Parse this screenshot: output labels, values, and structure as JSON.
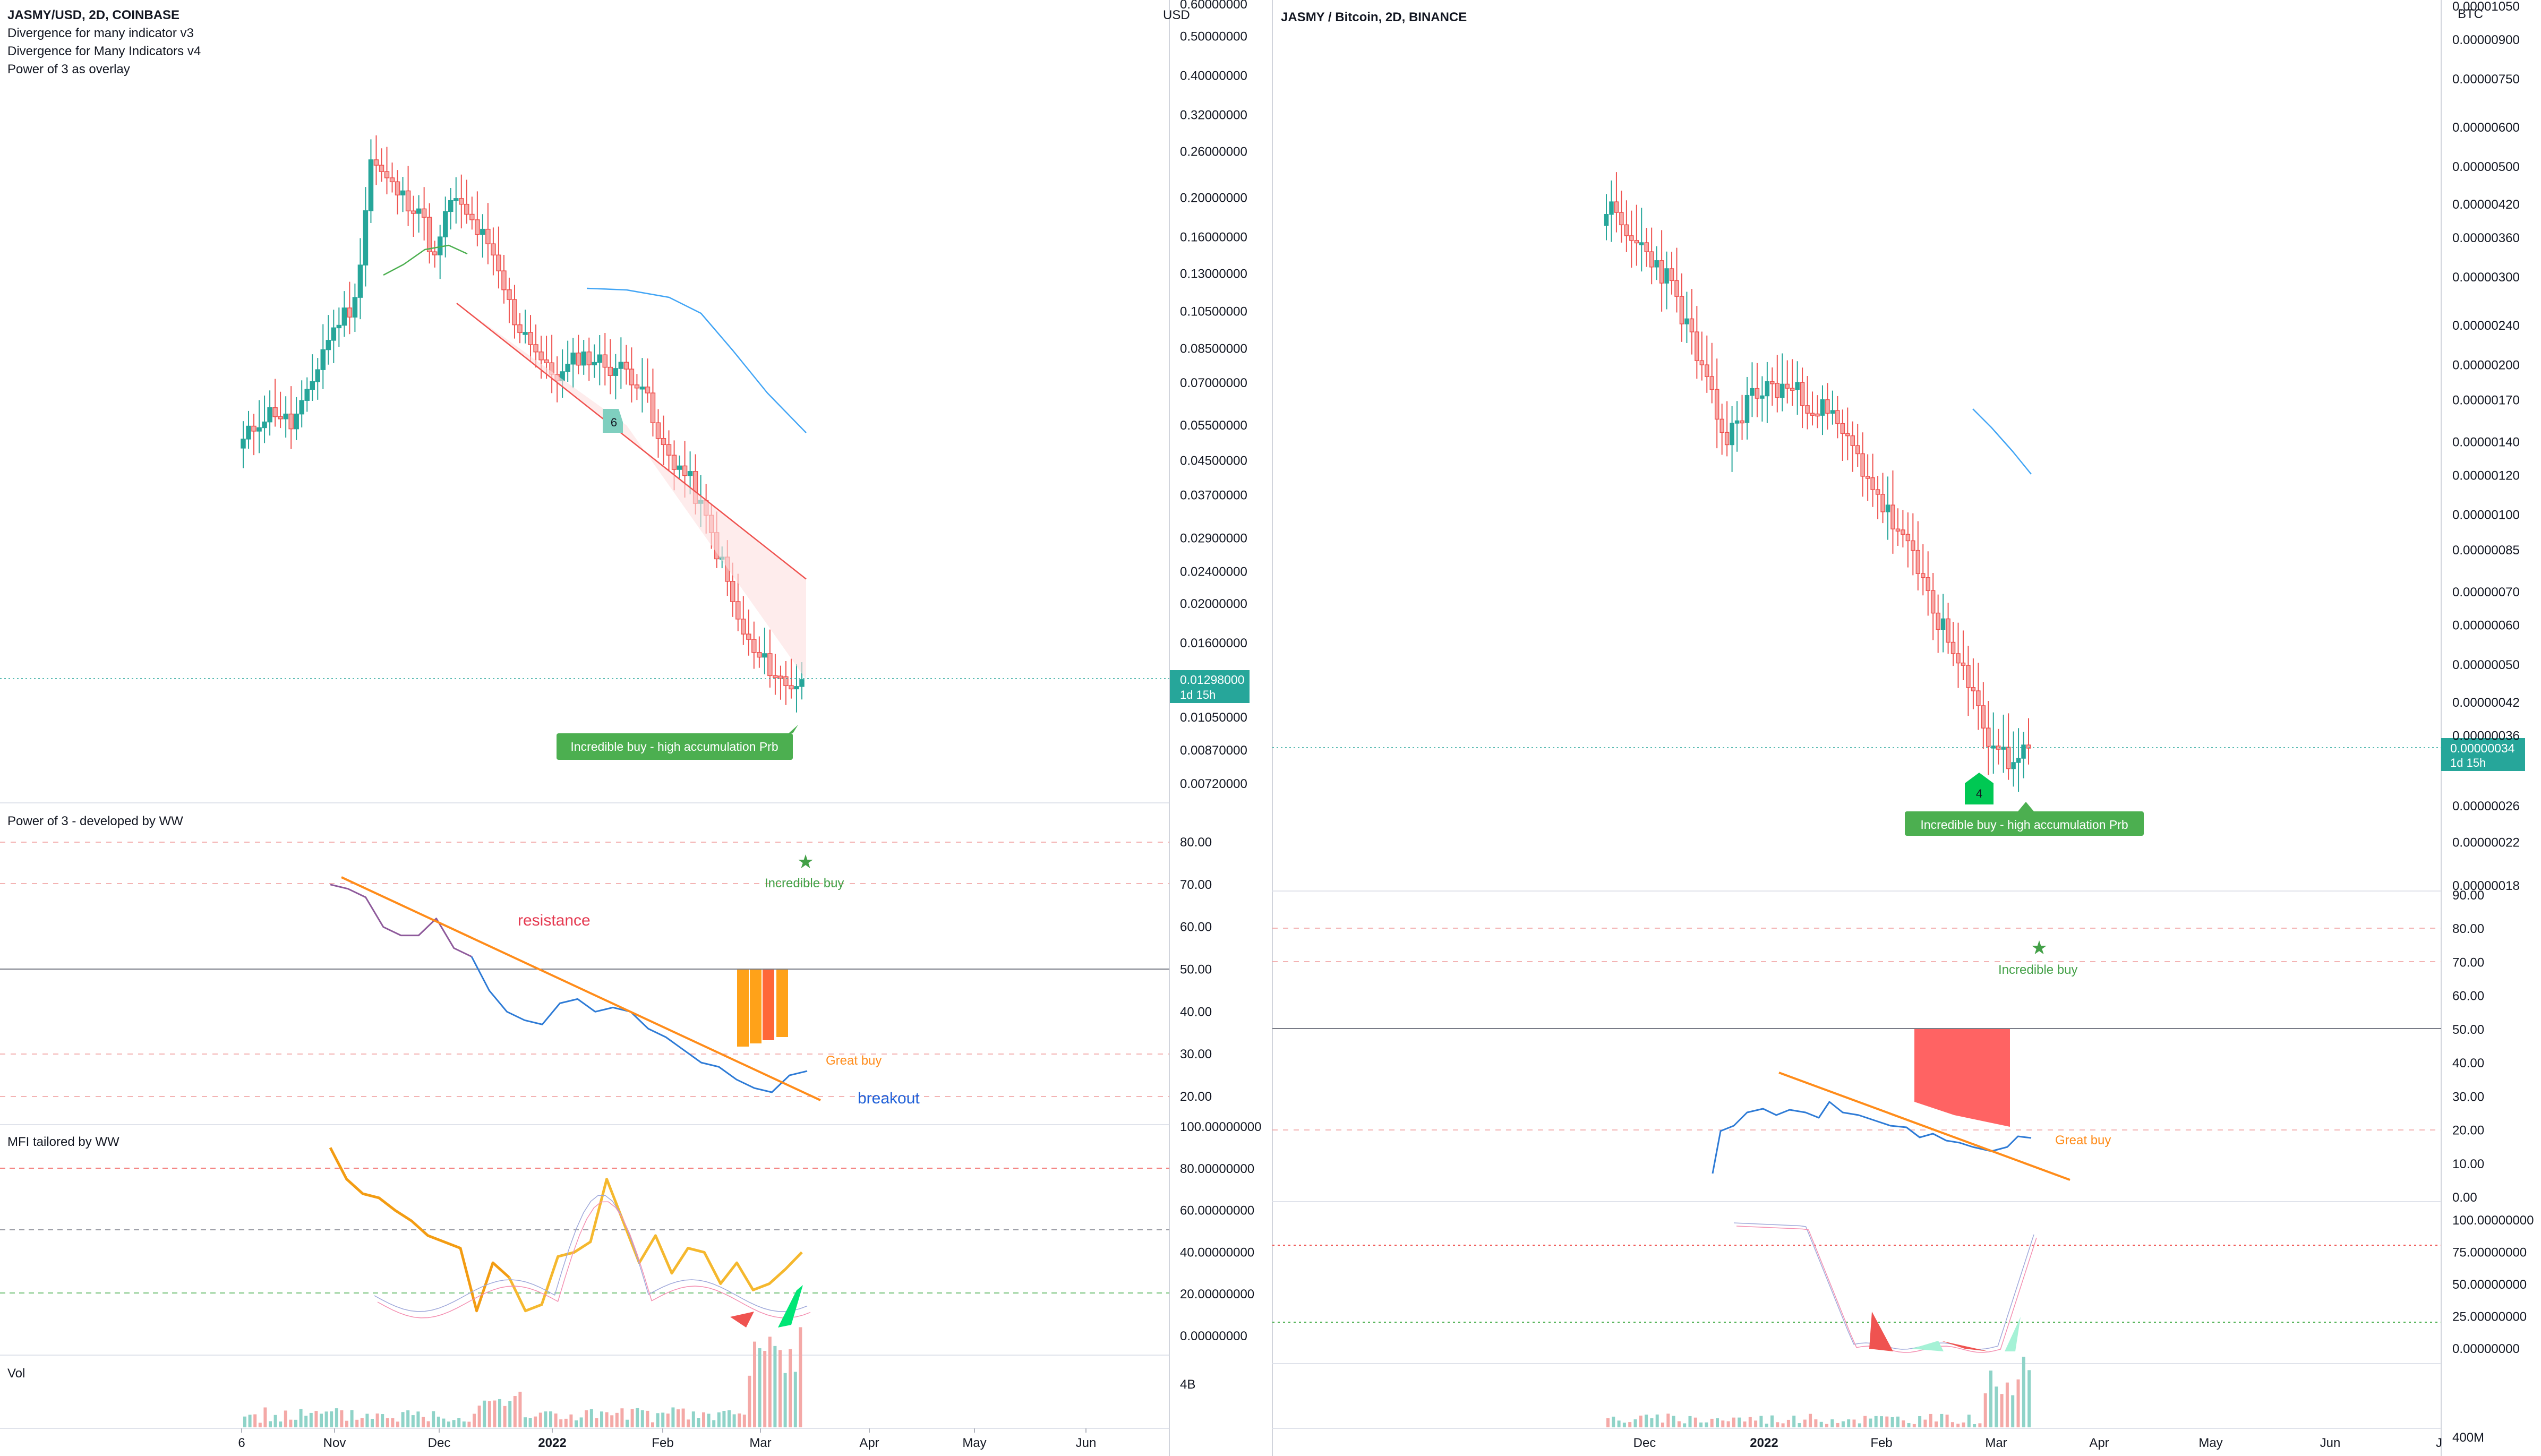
{
  "left_chart": {
    "title": "JASMY/USD, 2D, COINBASE",
    "indicators": [
      "Divergence for many indicator v3",
      "Divergence for Many Indicators v4",
      "Power of 3 as overlay"
    ],
    "currency": "USD",
    "price_ticks": [
      "0.60000000",
      "0.50000000",
      "0.40000000",
      "0.32000000",
      "0.26000000",
      "0.20000000",
      "0.16000000",
      "0.13000000",
      "0.10500000",
      "0.08500000",
      "0.07000000",
      "0.05500000",
      "0.04500000",
      "0.03700000",
      "0.02900000",
      "0.02400000",
      "0.02000000",
      "0.01600000",
      "0.01050000",
      "0.00870000",
      "0.00720000"
    ],
    "last_price": "0.01298000",
    "countdown": "1d 15h",
    "signal_box": "Incredible buy - high accumulation Prb",
    "marker_count": "6",
    "power3_title": "Power of 3 - developed by WW",
    "power3_ticks": [
      "80.00",
      "70.00",
      "60.00",
      "50.00",
      "40.00",
      "30.00",
      "20.00"
    ],
    "power3_annot": {
      "incredible": "Incredible buy",
      "great": "Great buy",
      "resistance": "resistance",
      "breakout": "breakout"
    },
    "mfi_title": "MFI tailored by WW",
    "mfi_ticks": [
      "100.00000000",
      "80.00000000",
      "60.00000000",
      "40.00000000",
      "20.00000000",
      "0.00000000"
    ],
    "vol_title": "Vol",
    "vol_tick": "4B",
    "time_labels": [
      "6",
      "Nov",
      "Dec",
      "2022",
      "Feb",
      "Mar",
      "Apr",
      "May",
      "Jun"
    ]
  },
  "right_chart": {
    "title": "JASMY / Bitcoin, 2D, BINANCE",
    "currency": "BTC",
    "price_ticks": [
      "0.00001050",
      "0.00000900",
      "0.00000750",
      "0.00000600",
      "0.00000500",
      "0.00000420",
      "0.00000360",
      "0.00000300",
      "0.00000240",
      "0.00000200",
      "0.00000170",
      "0.00000140",
      "0.00000120",
      "0.00000100",
      "0.00000085",
      "0.00000070",
      "0.00000060",
      "0.00000050",
      "0.00000042",
      "0.00000036",
      "0.00000026",
      "0.00000022",
      "0.00000018"
    ],
    "last_price": "0.00000034",
    "countdown": "1d 15h",
    "signal_box": "Incredible buy - high accumulation Prb",
    "marker_count": "4",
    "power3_ticks": [
      "90.00",
      "80.00",
      "70.00",
      "60.00",
      "50.00",
      "40.00",
      "30.00",
      "20.00",
      "10.00",
      "0.00"
    ],
    "power3_annot": {
      "incredible": "Incredible buy",
      "great": "Great buy"
    },
    "mfi_ticks": [
      "100.00000000",
      "75.00000000",
      "50.00000000",
      "25.00000000",
      "0.00000000"
    ],
    "vol_tick": "400M",
    "time_labels": [
      "Dec",
      "2022",
      "Feb",
      "Mar",
      "Apr",
      "May",
      "Jun",
      "J"
    ]
  },
  "colors": {
    "up": "#26a69a",
    "down": "#ef5350",
    "price_badge": "#26a69a",
    "signal_green": "#4caf50",
    "trend_orange": "#ff8c1a",
    "line_blue": "#2962ff",
    "resistance_red": "#e53950",
    "breakout_blue": "#1e5fd8"
  },
  "chart_data": [
    {
      "type": "candlestick",
      "title": "JASMY/USD, 2D, COINBASE",
      "y_scale": "log",
      "ylim": [
        0.0072,
        0.6
      ],
      "x_labels": [
        "6",
        "Nov",
        "Dec",
        "2022",
        "Feb",
        "Mar",
        "Apr",
        "May",
        "Jun"
      ],
      "series": [
        {
          "name": "JASMY/USD",
          "close": [
            0.05,
            0.057,
            0.06,
            0.055,
            0.064,
            0.085,
            0.1,
            0.11,
            0.25,
            0.22,
            0.2,
            0.19,
            0.14,
            0.2,
            0.18,
            0.16,
            0.13,
            0.1,
            0.09,
            0.075,
            0.073,
            0.082,
            0.08,
            0.077,
            0.075,
            0.07,
            0.05,
            0.045,
            0.04,
            0.032,
            0.025,
            0.018,
            0.015,
            0.014,
            0.0125,
            0.013
          ]
        }
      ],
      "last_price": 0.01298
    },
    {
      "type": "candlestick",
      "title": "JASMY / Bitcoin, 2D, BINANCE",
      "y_scale": "log",
      "ylim": [
        1.8e-07,
        1.05e-05
      ],
      "x_labels": [
        "Dec",
        "2022",
        "Feb",
        "Mar",
        "Apr",
        "May",
        "Jun",
        "J"
      ],
      "series": [
        {
          "name": "JASMY/BTC",
          "close": [
            4.2e-06,
            3.6e-06,
            3.4e-06,
            3e-06,
            2.4e-06,
            1.8e-06,
            1.4e-06,
            1.7e-06,
            1.8e-06,
            1.8e-06,
            1.7e-06,
            1.6e-06,
            1.4e-06,
            1.2e-06,
            1e-06,
            8.5e-07,
            7e-07,
            5.5e-07,
            4.5e-07,
            3.6e-07,
            3.2e-07,
            3.4e-07
          ]
        }
      ],
      "last_price": 3.4e-07
    },
    {
      "type": "line",
      "title": "Power of 3 - developed by WW",
      "ylim": [
        15,
        85
      ],
      "series": [
        {
          "name": "Power of 3",
          "values": [
            70,
            69,
            67,
            60,
            58,
            58,
            62,
            55,
            53,
            45,
            40,
            38,
            37,
            42,
            43,
            40,
            41,
            40,
            36,
            34,
            31,
            28,
            27,
            24,
            22,
            21,
            25,
            26
          ]
        }
      ]
    },
    {
      "type": "line",
      "title": "MFI tailored by WW",
      "ylim": [
        0,
        100
      ],
      "series": [
        {
          "name": "MFI",
          "values": [
            90,
            75,
            68,
            66,
            60,
            55,
            48,
            45,
            42,
            12,
            35,
            28,
            12,
            15,
            38,
            40,
            45,
            75,
            55,
            35,
            48,
            30,
            42,
            40,
            25,
            35,
            22,
            25,
            32,
            40
          ]
        }
      ]
    }
  ]
}
